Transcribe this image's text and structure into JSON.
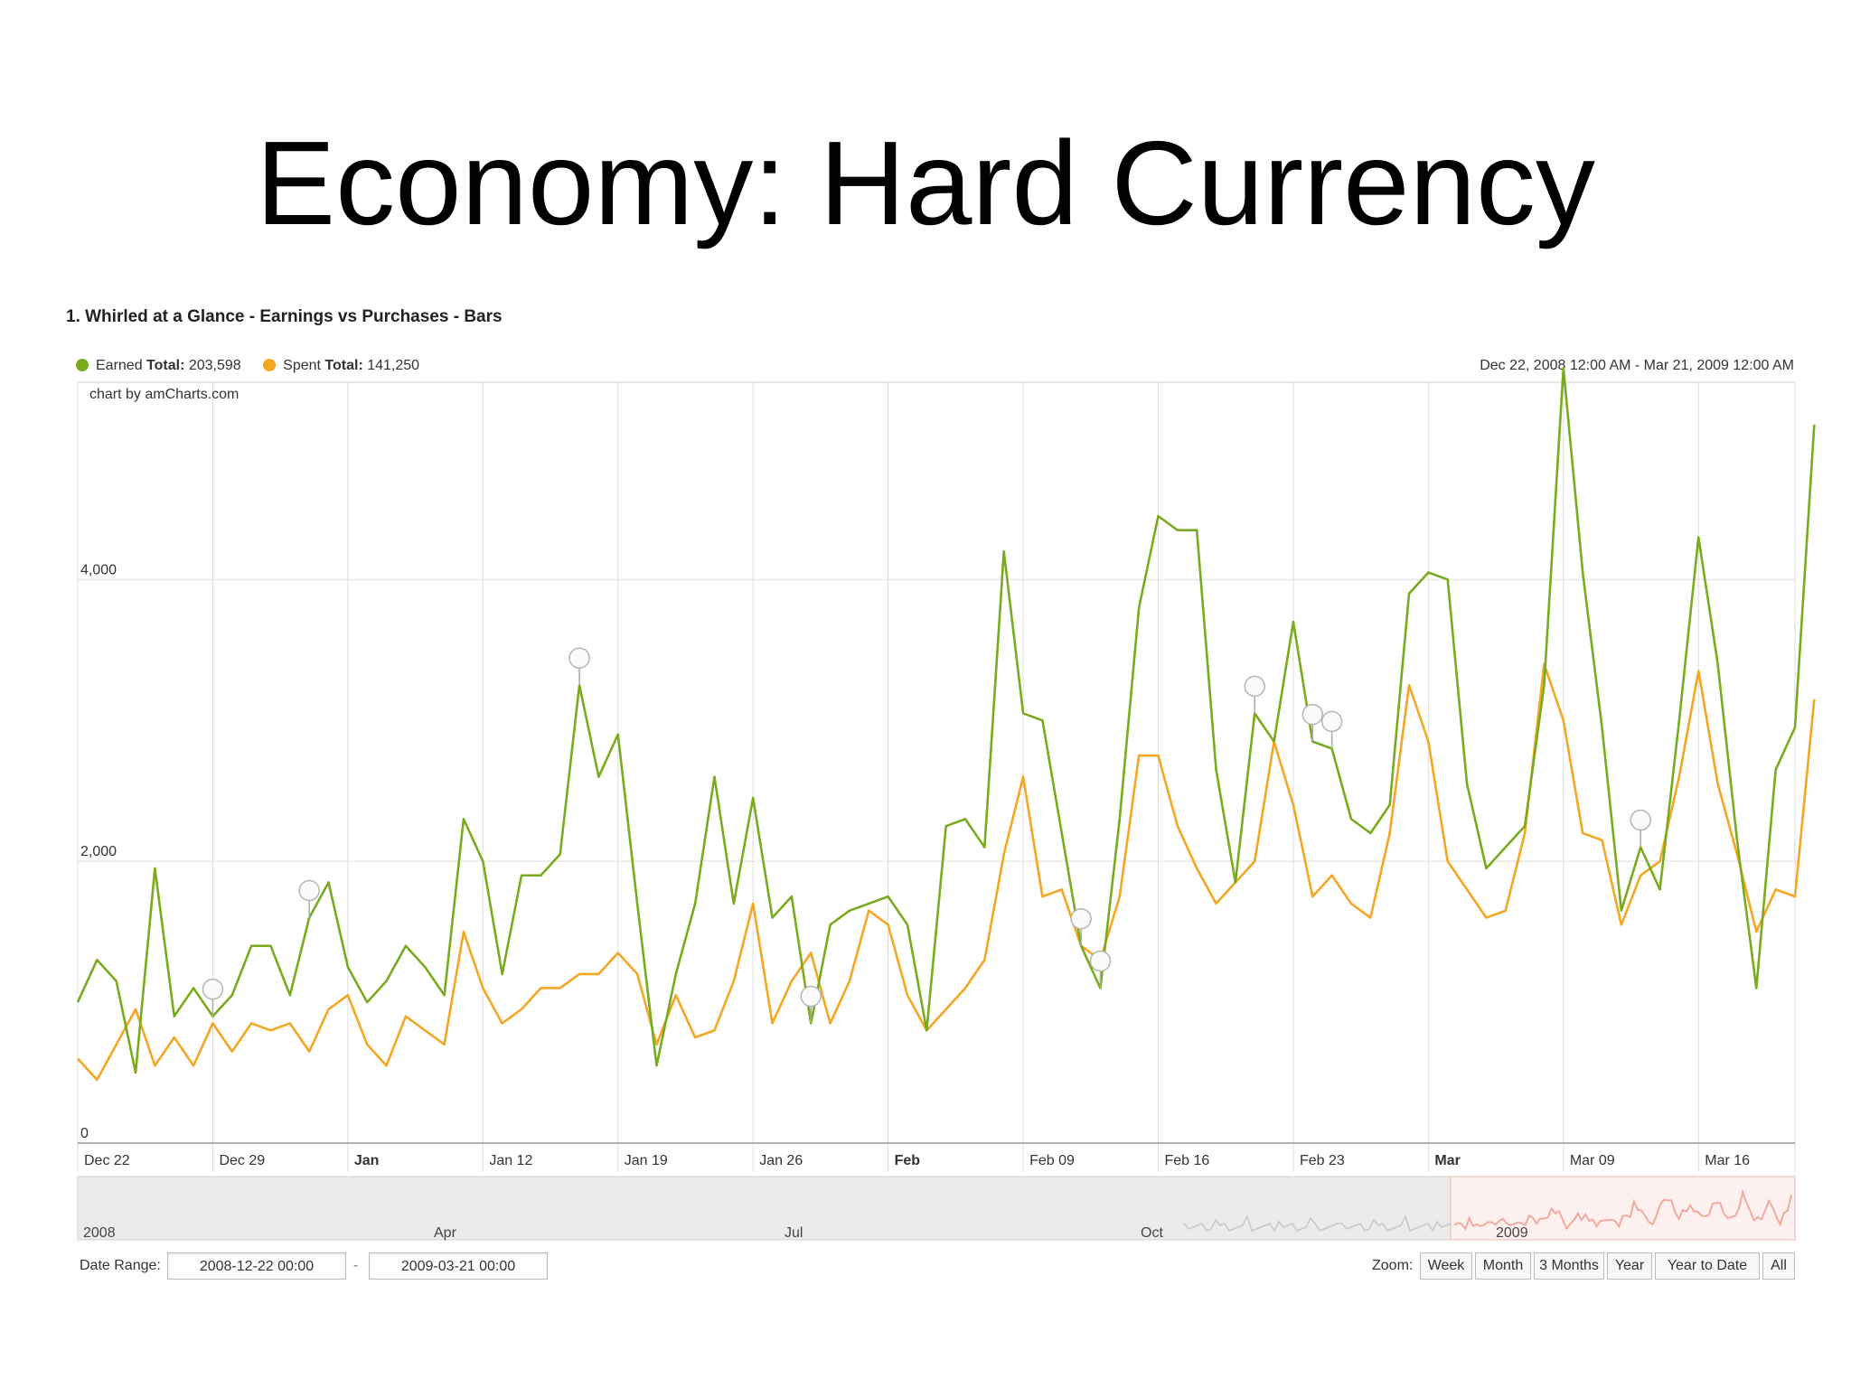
{
  "slide": {
    "title": "Economy: Hard Currency"
  },
  "chart_header": "1. Whirled at a Glance - Earnings vs Purchases - Bars",
  "legend": [
    {
      "name": "Earned",
      "label": "Total:",
      "total": "203,598",
      "color": "#7aab1e"
    },
    {
      "name": "Spent",
      "label": "Total:",
      "total": "141,250",
      "color": "#f5a623"
    }
  ],
  "date_span": "Dec 22, 2008 12:00 AM - Mar 21, 2009 12:00 AM",
  "credit": "chart by amCharts.com",
  "controls": {
    "date_range_label": "Date Range:",
    "from": "2008-12-22 00:00",
    "separator": "-",
    "to": "2009-03-21 00:00",
    "zoom_label": "Zoom:",
    "zoom_buttons": [
      "Week",
      "Month",
      "3 Months",
      "Year",
      "Year to Date",
      "All"
    ]
  },
  "navigator": {
    "labels": [
      "2008",
      "Apr",
      "Jul",
      "Oct",
      "2009"
    ],
    "selected_color": "#f4a9a0"
  },
  "chart_data": {
    "type": "line",
    "ylim": [
      0,
      5400
    ],
    "yticks": [
      {
        "v": 0,
        "label": "0"
      },
      {
        "v": 2000,
        "label": "2,000"
      },
      {
        "v": 4000,
        "label": "4,000"
      }
    ],
    "x_range_days": [
      0,
      89
    ],
    "xticks": [
      {
        "day": 0,
        "label": "Dec 22",
        "bold": false
      },
      {
        "day": 7,
        "label": "Dec 29",
        "bold": false
      },
      {
        "day": 14,
        "label": "Jan",
        "bold": true
      },
      {
        "day": 21,
        "label": "Jan 12",
        "bold": false
      },
      {
        "day": 28,
        "label": "Jan 19",
        "bold": false
      },
      {
        "day": 35,
        "label": "Jan 26",
        "bold": false
      },
      {
        "day": 42,
        "label": "Feb",
        "bold": true
      },
      {
        "day": 49,
        "label": "Feb 09",
        "bold": false
      },
      {
        "day": 56,
        "label": "Feb 16",
        "bold": false
      },
      {
        "day": 63,
        "label": "Feb 23",
        "bold": false
      },
      {
        "day": 70,
        "label": "Mar",
        "bold": true
      },
      {
        "day": 77,
        "label": "Mar 09",
        "bold": false
      },
      {
        "day": 84,
        "label": "Mar 16",
        "bold": false
      }
    ],
    "series": [
      {
        "name": "Earned",
        "color": "#7aab1e",
        "values": [
          1000,
          1300,
          1150,
          500,
          1950,
          900,
          1100,
          900,
          1050,
          1400,
          1400,
          1050,
          1600,
          1850,
          1250,
          1000,
          1150,
          1400,
          1250,
          1050,
          2300,
          2000,
          1200,
          1900,
          1900,
          2050,
          3250,
          2600,
          2900,
          1700,
          550,
          1200,
          1700,
          2600,
          1700,
          2450,
          1600,
          1750,
          850,
          1550,
          1650,
          1700,
          1750,
          1550,
          800,
          2250,
          2300,
          2100,
          4200,
          3050,
          3000,
          2200,
          1400,
          1100,
          2300,
          3800,
          4450,
          4350,
          4350,
          2650,
          1850,
          3050,
          2850,
          3700,
          2850,
          2800,
          2300,
          2200,
          2400,
          3900,
          4050,
          4000,
          2550,
          1950,
          2100,
          2250,
          3250,
          5500,
          4050,
          2950,
          1650,
          2100,
          1800,
          3000,
          4300,
          3400,
          2150,
          1100,
          2650,
          2950,
          5100
        ]
      },
      {
        "name": "Spent",
        "color": "#f5a623",
        "values": [
          600,
          450,
          700,
          950,
          550,
          750,
          550,
          850,
          650,
          850,
          800,
          850,
          650,
          950,
          1050,
          700,
          550,
          900,
          800,
          700,
          1500,
          1100,
          850,
          950,
          1100,
          1100,
          1200,
          1200,
          1350,
          1200,
          700,
          1050,
          750,
          800,
          1150,
          1700,
          850,
          1150,
          1350,
          850,
          1150,
          1650,
          1550,
          1050,
          800,
          950,
          1100,
          1300,
          2050,
          2600,
          1750,
          1800,
          1400,
          1300,
          1750,
          2750,
          2750,
          2250,
          1950,
          1700,
          1850,
          2000,
          2850,
          2400,
          1750,
          1900,
          1700,
          1600,
          2200,
          3250,
          2850,
          2000,
          1800,
          1600,
          1650,
          2200,
          3400,
          3000,
          2200,
          2150,
          1550,
          1900,
          2000,
          2600,
          3350,
          2550,
          2050,
          1500,
          1800,
          1750,
          3150
        ]
      }
    ],
    "event_markers_days": [
      7,
      12,
      26,
      38,
      52,
      53,
      61,
      64,
      65,
      81
    ]
  }
}
